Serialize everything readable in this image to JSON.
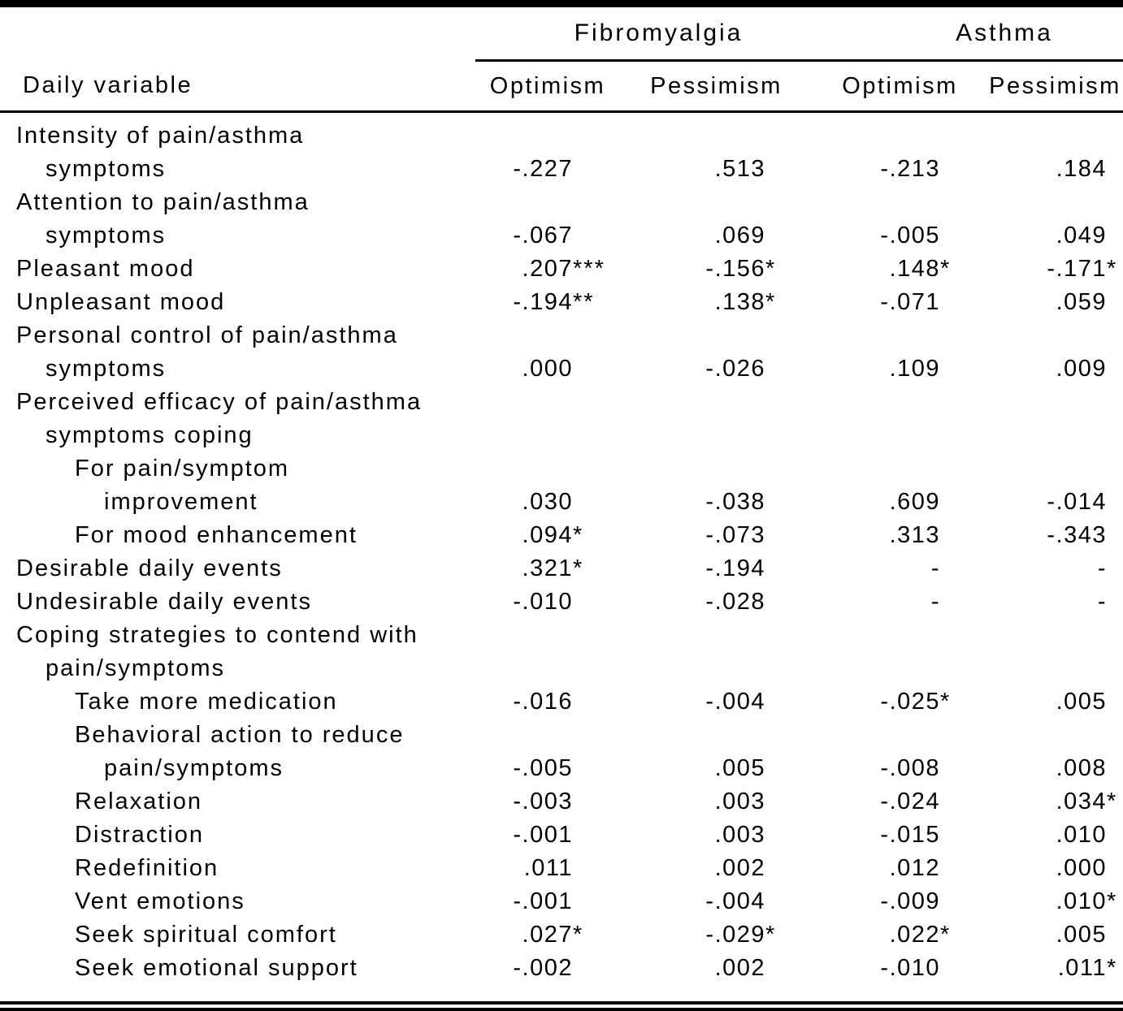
{
  "header": {
    "daily_variable_label": "Daily variable",
    "groups": [
      {
        "label": "Fibromyalgia"
      },
      {
        "label": "Asthma"
      }
    ],
    "subcolumns": [
      "Optimism",
      "Pessimism",
      "Optimism",
      "Pessimism"
    ]
  },
  "rows": [
    {
      "label": "Intensity of pain/asthma",
      "indent": 0,
      "cells": null
    },
    {
      "label": "symptoms",
      "indent": 1,
      "cells": [
        {
          "value": "-.227",
          "sig": ""
        },
        {
          "value": ".513",
          "sig": ""
        },
        {
          "value": "-.213",
          "sig": ""
        },
        {
          "value": ".184",
          "sig": ""
        }
      ]
    },
    {
      "label": "Attention to pain/asthma",
      "indent": 0,
      "cells": null
    },
    {
      "label": "symptoms",
      "indent": 1,
      "cells": [
        {
          "value": "-.067",
          "sig": ""
        },
        {
          "value": ".069",
          "sig": ""
        },
        {
          "value": "-.005",
          "sig": ""
        },
        {
          "value": ".049",
          "sig": ""
        }
      ]
    },
    {
      "label": "Pleasant mood",
      "indent": 0,
      "cells": [
        {
          "value": ".207",
          "sig": "***"
        },
        {
          "value": "-.156",
          "sig": "*"
        },
        {
          "value": ".148",
          "sig": "*"
        },
        {
          "value": "-.171",
          "sig": "*"
        }
      ]
    },
    {
      "label": "Unpleasant mood",
      "indent": 0,
      "cells": [
        {
          "value": "-.194",
          "sig": "**"
        },
        {
          "value": ".138",
          "sig": "*"
        },
        {
          "value": "-.071",
          "sig": ""
        },
        {
          "value": ".059",
          "sig": ""
        }
      ]
    },
    {
      "label": "Personal control of pain/asthma",
      "indent": 0,
      "cells": null
    },
    {
      "label": "symptoms",
      "indent": 1,
      "cells": [
        {
          "value": ".000",
          "sig": ""
        },
        {
          "value": "-.026",
          "sig": ""
        },
        {
          "value": ".109",
          "sig": ""
        },
        {
          "value": ".009",
          "sig": ""
        }
      ]
    },
    {
      "label": "Perceived efficacy of pain/asthma",
      "indent": 0,
      "cells": null
    },
    {
      "label": "symptoms coping",
      "indent": 1,
      "cells": null
    },
    {
      "label": "For pain/symptom",
      "indent": 2,
      "cells": null
    },
    {
      "label": "improvement",
      "indent": 3,
      "cells": [
        {
          "value": ".030",
          "sig": ""
        },
        {
          "value": "-.038",
          "sig": ""
        },
        {
          "value": ".609",
          "sig": ""
        },
        {
          "value": "-.014",
          "sig": ""
        }
      ]
    },
    {
      "label": "For mood enhancement",
      "indent": 2,
      "cells": [
        {
          "value": ".094",
          "sig": "*"
        },
        {
          "value": "-.073",
          "sig": ""
        },
        {
          "value": ".313",
          "sig": ""
        },
        {
          "value": "-.343",
          "sig": ""
        }
      ]
    },
    {
      "label": "Desirable daily events",
      "indent": 0,
      "cells": [
        {
          "value": ".321",
          "sig": "*"
        },
        {
          "value": "-.194",
          "sig": ""
        },
        {
          "value": "-",
          "sig": ""
        },
        {
          "value": "-",
          "sig": ""
        }
      ]
    },
    {
      "label": "Undesirable daily events",
      "indent": 0,
      "cells": [
        {
          "value": "-.010",
          "sig": ""
        },
        {
          "value": "-.028",
          "sig": ""
        },
        {
          "value": "-",
          "sig": ""
        },
        {
          "value": "-",
          "sig": ""
        }
      ]
    },
    {
      "label": "Coping strategies to contend with",
      "indent": 0,
      "cells": null
    },
    {
      "label": "pain/symptoms",
      "indent": 1,
      "cells": null
    },
    {
      "label": "Take more medication",
      "indent": 2,
      "cells": [
        {
          "value": "-.016",
          "sig": ""
        },
        {
          "value": "-.004",
          "sig": ""
        },
        {
          "value": "-.025",
          "sig": "*"
        },
        {
          "value": ".005",
          "sig": ""
        }
      ]
    },
    {
      "label": "Behavioral action to reduce",
      "indent": 2,
      "cells": null
    },
    {
      "label": "pain/symptoms",
      "indent": 3,
      "cells": [
        {
          "value": "-.005",
          "sig": ""
        },
        {
          "value": ".005",
          "sig": ""
        },
        {
          "value": "-.008",
          "sig": ""
        },
        {
          "value": ".008",
          "sig": ""
        }
      ]
    },
    {
      "label": "Relaxation",
      "indent": 2,
      "cells": [
        {
          "value": "-.003",
          "sig": ""
        },
        {
          "value": ".003",
          "sig": ""
        },
        {
          "value": "-.024",
          "sig": ""
        },
        {
          "value": ".034",
          "sig": "*"
        }
      ]
    },
    {
      "label": "Distraction",
      "indent": 2,
      "cells": [
        {
          "value": "-.001",
          "sig": ""
        },
        {
          "value": ".003",
          "sig": ""
        },
        {
          "value": "-.015",
          "sig": ""
        },
        {
          "value": ".010",
          "sig": ""
        }
      ]
    },
    {
      "label": "Redefinition",
      "indent": 2,
      "cells": [
        {
          "value": ".011",
          "sig": ""
        },
        {
          "value": ".002",
          "sig": ""
        },
        {
          "value": ".012",
          "sig": ""
        },
        {
          "value": ".000",
          "sig": ""
        }
      ]
    },
    {
      "label": "Vent emotions",
      "indent": 2,
      "cells": [
        {
          "value": "-.001",
          "sig": ""
        },
        {
          "value": "-.004",
          "sig": ""
        },
        {
          "value": "-.009",
          "sig": ""
        },
        {
          "value": ".010",
          "sig": "*"
        }
      ]
    },
    {
      "label": "Seek spiritual comfort",
      "indent": 2,
      "cells": [
        {
          "value": ".027",
          "sig": "*"
        },
        {
          "value": "-.029",
          "sig": "*"
        },
        {
          "value": ".022",
          "sig": "*"
        },
        {
          "value": ".005",
          "sig": ""
        }
      ]
    },
    {
      "label": "Seek emotional support",
      "indent": 2,
      "cells": [
        {
          "value": "-.002",
          "sig": ""
        },
        {
          "value": ".002",
          "sig": ""
        },
        {
          "value": "-.010",
          "sig": ""
        },
        {
          "value": ".011",
          "sig": "*"
        }
      ]
    }
  ]
}
